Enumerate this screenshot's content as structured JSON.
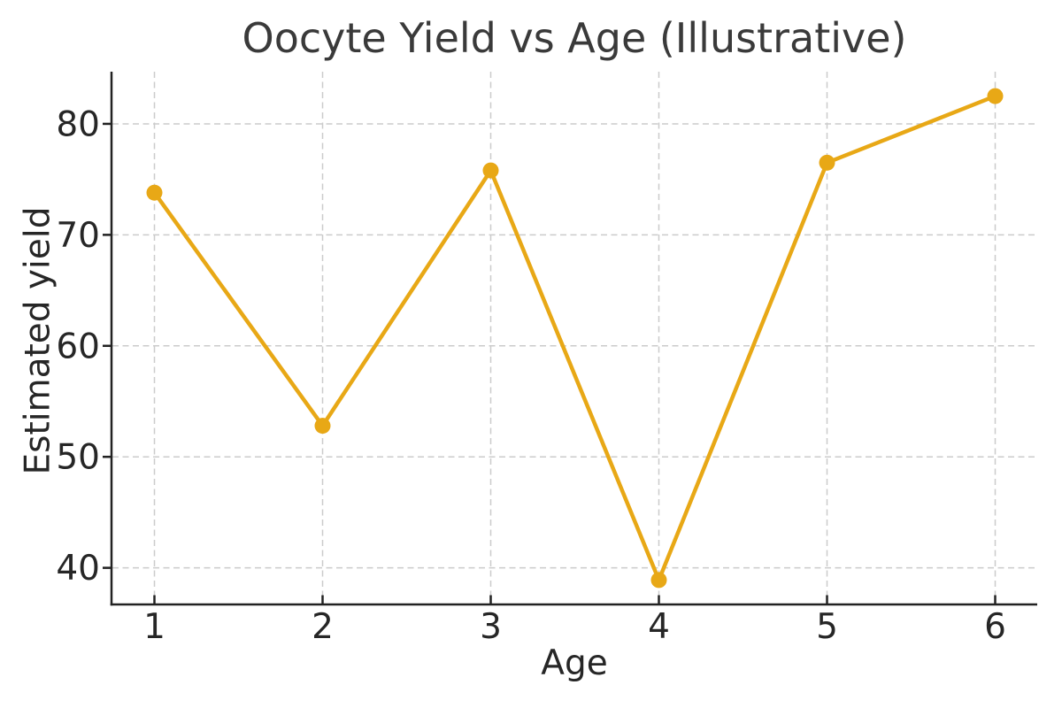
{
  "chart_data": {
    "type": "line",
    "title": "Oocyte Yield vs Age (Illustrative)",
    "xlabel": "Age",
    "ylabel": "Estimated yield",
    "x": [
      1,
      2,
      3,
      4,
      5,
      6
    ],
    "series": [
      {
        "name": "Estimated yield",
        "values": [
          73.8,
          52.8,
          75.8,
          38.9,
          76.5,
          82.5
        ]
      }
    ],
    "xticks": [
      1,
      2,
      3,
      4,
      5,
      6
    ],
    "yticks": [
      40,
      50,
      60,
      70,
      80
    ],
    "xlim": [
      0.75,
      6.25
    ],
    "ylim": [
      36.7,
      84.7
    ],
    "grid": true,
    "grid_style": "dashed",
    "legend_position": "none",
    "line_color": "#E8A816",
    "marker": "circle",
    "grid_color": "#cbcbcb",
    "spine_color": "#222222",
    "text_color": "#262626",
    "title_color": "#3a3a3a",
    "background_color": "#ffffff"
  }
}
